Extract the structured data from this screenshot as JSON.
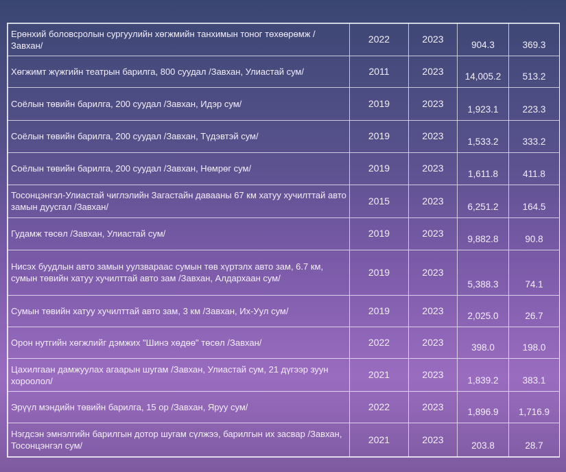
{
  "rows": [
    {
      "name": "Ерөнхий боловсролын сургуулийн хөгжмийн танхимын тоног төхөөрөмж /Завхан/",
      "start": "2022",
      "end": "2023",
      "cost": "904.3",
      "amount": "369.3"
    },
    {
      "name": "Хөгжимт жүжгийн театрын барилга, 800 суудал /Завхан, Улиастай сум/",
      "start": "2011",
      "end": "2023",
      "cost": "14,005.2",
      "amount": "513.2"
    },
    {
      "name": "Соёлын төвийн барилга, 200 суудал /Завхан, Идэр сум/",
      "start": "2019",
      "end": "2023",
      "cost": "1,923.1",
      "amount": "223.3"
    },
    {
      "name": "Соёлын төвийн барилга, 200 суудал /Завхан, Түдэвтэй сум/",
      "start": "2019",
      "end": "2023",
      "cost": "1,533.2",
      "amount": "333.2"
    },
    {
      "name": "Соёлын төвийн барилга, 200 суудал /Завхан, Нөмрөг сум/",
      "start": "2019",
      "end": "2023",
      "cost": "1,611.8",
      "amount": "411.8"
    },
    {
      "name": "Тосонцэнгэл-Улиастай чиглэлийн Загастайн давааны 67 км хатуу хучилттай авто замын дуусгал /Завхан/",
      "start": "2015",
      "end": "2023",
      "cost": "6,251.2",
      "amount": "164.5"
    },
    {
      "name": "Гудамж төсөл /Завхан, Улиастай сум/",
      "start": "2019",
      "end": "2023",
      "cost": "9,882.8",
      "amount": "90.8"
    },
    {
      "name": "Нисэх буудлын авто замын уулзвараас сумын төв хүртэлх авто зам, 6.7 км, сумын төвийн хатуу хучилттай авто зам /Завхан, Алдархаан сум/",
      "start": "2019",
      "end": "2023",
      "cost": "5,388.3",
      "amount": "74.1"
    },
    {
      "name": "Сумын төвийн хатуу хучилттай авто зам, 3 км /Завхан, Их-Уул сум/",
      "start": "2019",
      "end": "2023",
      "cost": "2,025.0",
      "amount": "26.7"
    },
    {
      "name": "Орон нутгийн хөгжлийг дэмжих \"Шинэ хөдөө\" төсөл /Завхан/",
      "start": "2022",
      "end": "2023",
      "cost": "398.0",
      "amount": "198.0"
    },
    {
      "name": "Цахилгаан дамжуулах агаарын шугам /Завхан, Улиастай сум, 21 дүгээр зуун хороолол/",
      "start": "2021",
      "end": "2023",
      "cost": "1,839.2",
      "amount": "383.1"
    },
    {
      "name": "Эрүүл мэндийн төвийн барилга, 15 ор /Завхан, Яруу сум/",
      "start": "2022",
      "end": "2023",
      "cost": "1,896.9",
      "amount": "1,716.9"
    },
    {
      "name": "Нэгдсэн эмнэлгийн барилгын дотор шугам сүлжээ, барилгын их засвар /Завхан, Тосонцэнгэл сум/",
      "start": "2021",
      "end": "2023",
      "cost": "203.8",
      "amount": "28.7"
    }
  ]
}
